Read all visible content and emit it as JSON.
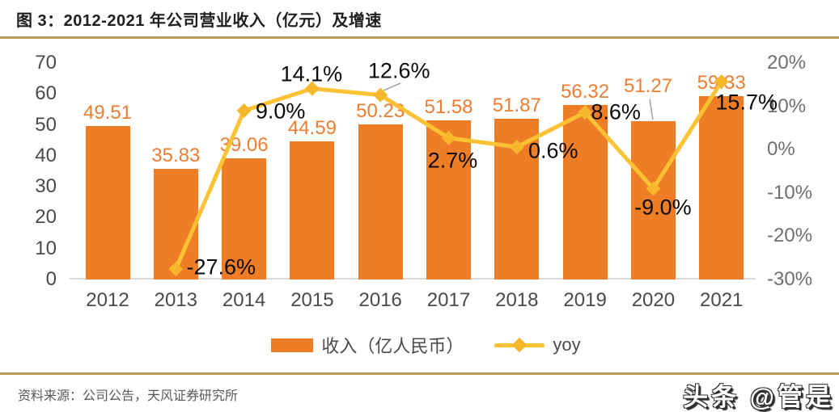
{
  "title": "图 3：2012-2021 年公司营业收入（亿元）及增速",
  "source": "资料来源：公司公告，天风证券研究所",
  "watermark": "头条 @管是",
  "legend": [
    {
      "label": "收入（亿人民币）",
      "swatch": "orange-bar"
    },
    {
      "label": "yoy",
      "swatch": "gold-line-diamond"
    }
  ],
  "colors": {
    "bar": "#ee7d26",
    "bar_label_text": "#ed7d31",
    "line": "#fbc233",
    "marker": "#f6b72a",
    "yoy_label_text": "#0a0a0a",
    "axis_text_left": "#4a4a4a",
    "axis_text_right": "#6f6f6f",
    "axis_line": "#d9d9d9",
    "divider_rule": "#bc9c52",
    "source_text": "#595959"
  },
  "chart_data": {
    "type": "bar+line combo",
    "title": "2012-2021 年公司营业收入（亿元）及增速",
    "categories": [
      "2012",
      "2013",
      "2014",
      "2015",
      "2016",
      "2017",
      "2018",
      "2019",
      "2020",
      "2021"
    ],
    "series": [
      {
        "name": "收入（亿人民币）",
        "type": "bar",
        "axis": "left",
        "values": [
          49.51,
          35.83,
          39.06,
          44.59,
          50.23,
          51.58,
          51.87,
          56.32,
          51.27,
          59.33
        ],
        "labels": [
          "49.51",
          "35.83",
          "39.06",
          "44.59",
          "50.23",
          "51.58",
          "51.87",
          "56.32",
          "51.27",
          "59.33"
        ]
      },
      {
        "name": "yoy",
        "type": "line",
        "axis": "right",
        "values": [
          null,
          -27.6,
          9.0,
          14.1,
          12.6,
          2.7,
          0.6,
          8.6,
          -9.0,
          15.7
        ],
        "labels": [
          "",
          "-27.6%",
          "9.0%",
          "14.1%",
          "12.6%",
          "2.7%",
          "0.6%",
          "8.6%",
          "-9.0%",
          "15.7%"
        ]
      }
    ],
    "left_axis": {
      "min": 0,
      "max": 70,
      "ticks": [
        "0",
        "10",
        "20",
        "30",
        "40",
        "50",
        "60",
        "70"
      ]
    },
    "right_axis": {
      "min": -30,
      "max": 20,
      "ticks": [
        "-30%",
        "-20%",
        "-10%",
        "0%",
        "10%",
        "20%"
      ]
    },
    "grid": false,
    "legend_position": "bottom"
  }
}
